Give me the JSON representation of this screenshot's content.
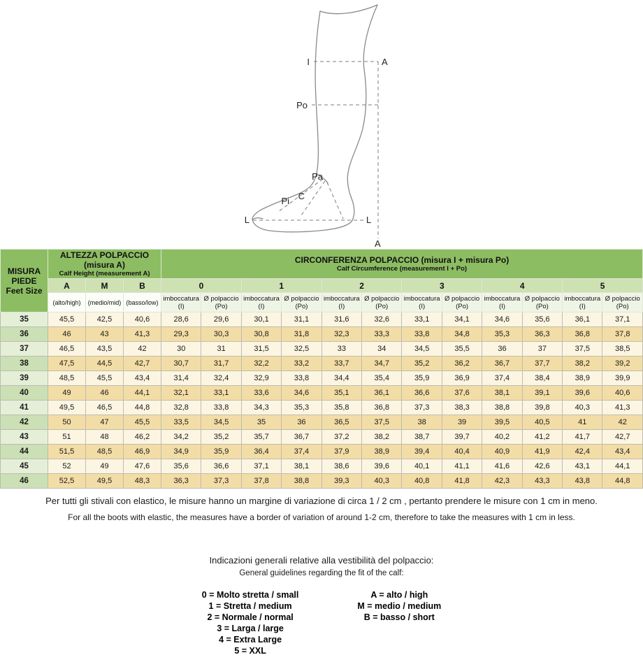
{
  "colors": {
    "header_green": "#8dbd63",
    "subheader_green": "#cde1b3",
    "subheader_pale": "#eff5e6",
    "row_odd_bg": "#fcf5e2",
    "row_even_bg": "#f3dda6",
    "size_odd_bg": "#e5efd8",
    "size_even_bg": "#cbe0b4"
  },
  "diagram": {
    "labels": {
      "i": "I",
      "a_top": "A",
      "po": "Po",
      "pa": "Pa",
      "c": "C",
      "pi": "Pi",
      "l_left": "L",
      "l_right": "L",
      "a_bottom": "A"
    }
  },
  "table": {
    "corner": {
      "line1": "MISURA",
      "line2": "PIEDE",
      "line3": "Feet Size"
    },
    "calf_height": {
      "title": "ALTEZZA POLPACCIO",
      "subtitle": "(misura A)",
      "subtitle_en": "Calf Height (measurement A)",
      "columns": [
        "A",
        "M",
        "B"
      ],
      "column_notes": [
        "(alto/high)",
        "(medio/mid)",
        "(basso/low)"
      ]
    },
    "circumference": {
      "title": "CIRCONFERENZA POLPACCIO  (misura I + misura Po)",
      "subtitle_en": "Calf Circumference (measurement I + Po)",
      "fit_groups": [
        "0",
        "1",
        "2",
        "3",
        "4",
        "5"
      ],
      "sub_col_1": "imboccatura",
      "sub_col_1_unit": "(I)",
      "sub_col_2": "Ø polpaccio",
      "sub_col_2_unit": "(Po)"
    },
    "rows": [
      {
        "size": "35",
        "calf_heights": [
          "45,5",
          "42,5",
          "40,6"
        ],
        "circumferences": [
          "28,6",
          "29,6",
          "30,1",
          "31,1",
          "31,6",
          "32,6",
          "33,1",
          "34,1",
          "34,6",
          "35,6",
          "36,1",
          "37,1"
        ]
      },
      {
        "size": "36",
        "calf_heights": [
          "46",
          "43",
          "41,3"
        ],
        "circumferences": [
          "29,3",
          "30,3",
          "30,8",
          "31,8",
          "32,3",
          "33,3",
          "33,8",
          "34,8",
          "35,3",
          "36,3",
          "36,8",
          "37,8"
        ]
      },
      {
        "size": "37",
        "calf_heights": [
          "46,5",
          "43,5",
          "42"
        ],
        "circumferences": [
          "30",
          "31",
          "31,5",
          "32,5",
          "33",
          "34",
          "34,5",
          "35,5",
          "36",
          "37",
          "37,5",
          "38,5"
        ]
      },
      {
        "size": "38",
        "calf_heights": [
          "47,5",
          "44,5",
          "42,7"
        ],
        "circumferences": [
          "30,7",
          "31,7",
          "32,2",
          "33,2",
          "33,7",
          "34,7",
          "35,2",
          "36,2",
          "36,7",
          "37,7",
          "38,2",
          "39,2"
        ]
      },
      {
        "size": "39",
        "calf_heights": [
          "48,5",
          "45,5",
          "43,4"
        ],
        "circumferences": [
          "31,4",
          "32,4",
          "32,9",
          "33,8",
          "34,4",
          "35,4",
          "35,9",
          "36,9",
          "37,4",
          "38,4",
          "38,9",
          "39,9"
        ]
      },
      {
        "size": "40",
        "calf_heights": [
          "49",
          "46",
          "44,1"
        ],
        "circumferences": [
          "32,1",
          "33,1",
          "33,6",
          "34,6",
          "35,1",
          "36,1",
          "36,6",
          "37,6",
          "38,1",
          "39,1",
          "39,6",
          "40,6"
        ]
      },
      {
        "size": "41",
        "calf_heights": [
          "49,5",
          "46,5",
          "44,8"
        ],
        "circumferences": [
          "32,8",
          "33,8",
          "34,3",
          "35,3",
          "35,8",
          "36,8",
          "37,3",
          "38,3",
          "38,8",
          "39,8",
          "40,3",
          "41,3"
        ]
      },
      {
        "size": "42",
        "calf_heights": [
          "50",
          "47",
          "45,5"
        ],
        "circumferences": [
          "33,5",
          "34,5",
          "35",
          "36",
          "36,5",
          "37,5",
          "38",
          "39",
          "39,5",
          "40,5",
          "41",
          "42"
        ]
      },
      {
        "size": "43",
        "calf_heights": [
          "51",
          "48",
          "46,2"
        ],
        "circumferences": [
          "34,2",
          "35,2",
          "35,7",
          "36,7",
          "37,2",
          "38,2",
          "38,7",
          "39,7",
          "40,2",
          "41,2",
          "41,7",
          "42,7"
        ]
      },
      {
        "size": "44",
        "calf_heights": [
          "51,5",
          "48,5",
          "46,9"
        ],
        "circumferences": [
          "34,9",
          "35,9",
          "36,4",
          "37,4",
          "37,9",
          "38,9",
          "39,4",
          "40,4",
          "40,9",
          "41,9",
          "42,4",
          "43,4"
        ]
      },
      {
        "size": "45",
        "calf_heights": [
          "52",
          "49",
          "47,6"
        ],
        "circumferences": [
          "35,6",
          "36,6",
          "37,1",
          "38,1",
          "38,6",
          "39,6",
          "40,1",
          "41,1",
          "41,6",
          "42,6",
          "43,1",
          "44,1"
        ]
      },
      {
        "size": "46",
        "calf_heights": [
          "52,5",
          "49,5",
          "48,3"
        ],
        "circumferences": [
          "36,3",
          "37,3",
          "37,8",
          "38,8",
          "39,3",
          "40,3",
          "40,8",
          "41,8",
          "42,3",
          "43,3",
          "43,8",
          "44,8"
        ]
      }
    ]
  },
  "notes": {
    "it": "Per tutti gli stivali con elastico, le misure hanno un margine di variazione di circa 1 / 2 cm , pertanto prendere le misure con 1 cm in meno.",
    "en": "For all the boots with elastic, the measures have a border of variation of around 1-2 cm, therefore to take the measures with 1 cm in less."
  },
  "guidelines": {
    "title_it": "Indicazioni generali relative alla vestibilità del polpaccio:",
    "title_en": "General guidelines regarding the fit of the calf:",
    "fit_items": [
      "0 = Molto stretta / small",
      "1 = Stretta / medium",
      "2 = Normale / normal",
      "3 = Larga / large",
      "4 = Extra Large",
      "5 = XXL"
    ],
    "height_items": [
      "A = alto / high",
      "M = medio / medium",
      "B = basso / short"
    ]
  }
}
